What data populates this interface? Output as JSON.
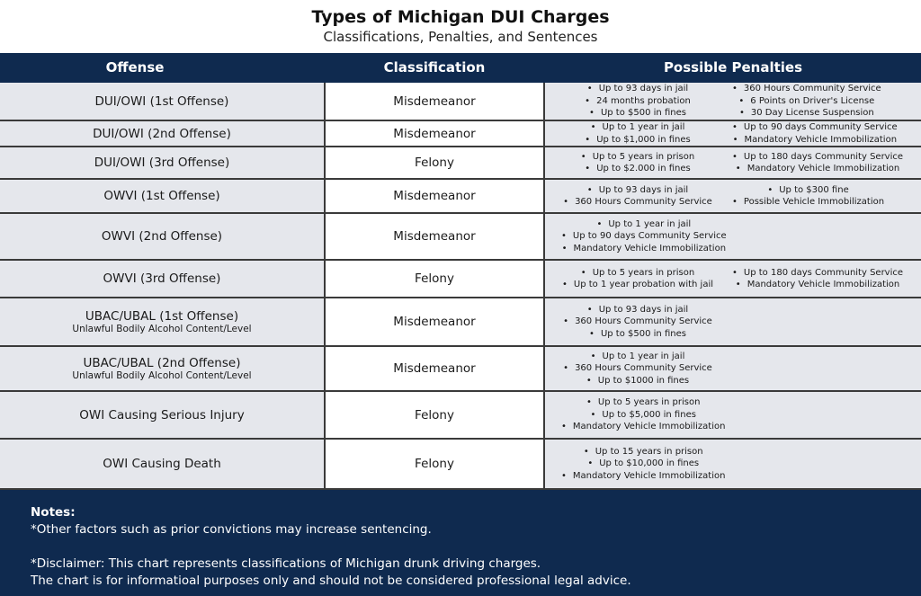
{
  "title": "Types of Michigan DUI Charges",
  "subtitle": "Classifications, Penalties, and Sentences",
  "headers": [
    "Offense",
    "Classification",
    "Possible Penalties"
  ],
  "rows": [
    {
      "offense": "DUI/OWI (1st Offense)",
      "sub": "",
      "class": "Misdemeanor",
      "left": [
        "Up to 93 days in jail",
        "24 months probation",
        "Up to $500 in fines"
      ],
      "right": [
        "360 Hours Community Service",
        "6 Points on Driver's License",
        "30 Day License Suspension"
      ]
    },
    {
      "offense": "DUI/OWI (2nd Offense)",
      "sub": "",
      "class": "Misdemeanor",
      "left": [
        "Up to 1 year in jail",
        "Up to $1,000 in fines"
      ],
      "right": [
        "Up to 90 days Community Service",
        "Mandatory Vehicle Immobilization"
      ]
    },
    {
      "offense": "DUI/OWI (3rd Offense)",
      "sub": "",
      "class": "Felony",
      "left": [
        "Up to 5 years in prison",
        "Up to $2.000 in fines"
      ],
      "right": [
        "Up to 180 days Community Service",
        "Mandatory Vehicle Immobilization"
      ]
    },
    {
      "offense": "OWVI (1st Offense)",
      "sub": "",
      "class": "Misdemeanor",
      "left": [
        "Up to 93 days in jail",
        "360 Hours Community Service"
      ],
      "right": [
        "Up to  $300 fine",
        "Possible Vehicle Immobilization"
      ]
    },
    {
      "offense": "OWVI (2nd Offense)",
      "sub": "",
      "class": "Misdemeanor",
      "left": [
        "Up to 1 year in jail",
        "Up to 90 days Community Service",
        "Mandatory Vehicle Immobilization"
      ],
      "right": []
    },
    {
      "offense": "OWVI (3rd Offense)",
      "sub": "",
      "class": "Felony",
      "left": [
        "Up to 5 years in prison",
        "Up to 1 year probation with jail"
      ],
      "right": [
        "Up to  180 days Community Service",
        "Mandatory Vehicle Immobilization"
      ]
    },
    {
      "offense": "UBAC/UBAL (1st Offense)",
      "sub": "Unlawful Bodily Alcohol Content/Level",
      "class": "Misdemeanor",
      "left": [
        "Up to 93 days in jail",
        "360 Hours Community Service",
        "Up to $500 in fines"
      ],
      "right": []
    },
    {
      "offense": "UBAC/UBAL (2nd Offense)",
      "sub": "Unlawful Bodily Alcohol Content/Level",
      "class": "Misdemeanor",
      "left": [
        "Up to 1 year in jail",
        "360 Hours Community Service",
        "Up to $1000 in fines"
      ],
      "right": []
    },
    {
      "offense": "OWI Causing Serious Injury",
      "sub": "",
      "class": "Felony",
      "left": [
        "Up to 5 years in prison",
        "Up to $5,000 in fines",
        "Mandatory Vehicle Immobilization"
      ],
      "right": []
    },
    {
      "offense": "OWI Causing Death",
      "sub": "",
      "class": "Felony",
      "left": [
        "Up to 15 years in prison",
        "Up to $10,000 in fines",
        "Mandatory Vehicle Immobilization"
      ],
      "right": []
    }
  ],
  "notes": {
    "heading": "Notes:",
    "line1": "*Other factors such as prior convictions may increase sentencing.",
    "line2": "*Disclaimer: This chart represents classifications of Michigan drunk driving charges.",
    "line3": "The chart is for informatioal purposes only and should not be considered professional legal advice."
  }
}
